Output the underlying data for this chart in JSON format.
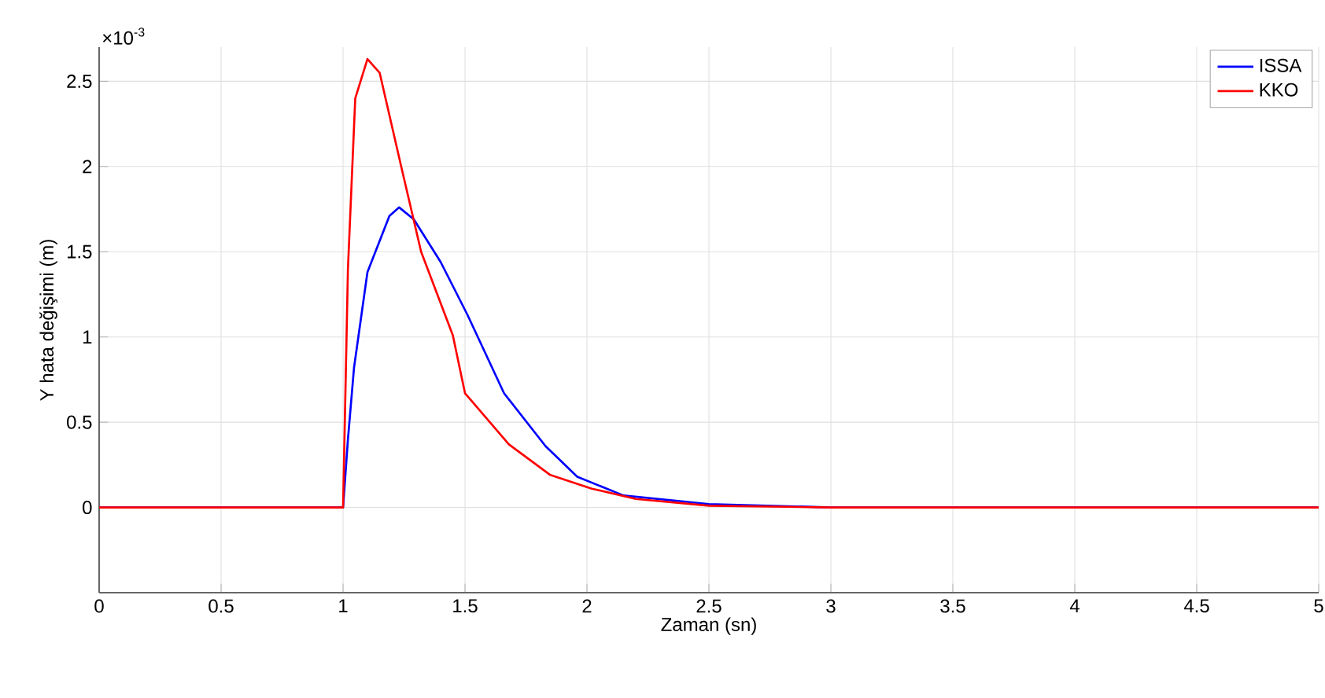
{
  "chart_data": {
    "type": "line",
    "xlabel": "Zaman (sn)",
    "ylabel": "Y hata değişimi (m)",
    "annotations": [
      "×10$^{-3}$"
    ],
    "xlim": [
      0,
      5
    ],
    "ylim": [
      -0.5,
      2.7
    ],
    "xticks": [
      0,
      0.5,
      1,
      1.5,
      2,
      2.5,
      3,
      3.5,
      4,
      4.5,
      5
    ],
    "yticks": [
      0,
      0.5,
      1,
      1.5,
      2,
      2.5
    ],
    "grid": true,
    "legend": "top right",
    "marker": "none",
    "line_style": "solid",
    "series": [
      {
        "name": "ISSA",
        "color": "#0000ff",
        "x": [
          0,
          1,
          1.02,
          1.045,
          1.1,
          1.19,
          1.23,
          1.29,
          1.4,
          1.51,
          1.66,
          1.83,
          1.96,
          2.15,
          2.5,
          3,
          5
        ],
        "values": [
          0,
          0,
          0.4,
          0.82,
          1.38,
          1.71,
          1.76,
          1.69,
          1.44,
          1.13,
          0.67,
          0.36,
          0.18,
          0.07,
          0.02,
          0,
          0
        ]
      },
      {
        "name": "KKO",
        "color": "#ff0000",
        "x": [
          0,
          1,
          1.02,
          1.05,
          1.1,
          1.15,
          1.24,
          1.32,
          1.45,
          1.5,
          1.68,
          1.85,
          2.02,
          2.2,
          2.5,
          3,
          5
        ],
        "values": [
          0,
          0,
          1.4,
          2.4,
          2.63,
          2.55,
          1.99,
          1.5,
          1.01,
          0.67,
          0.37,
          0.19,
          0.11,
          0.05,
          0.01,
          0,
          0
        ]
      }
    ]
  }
}
